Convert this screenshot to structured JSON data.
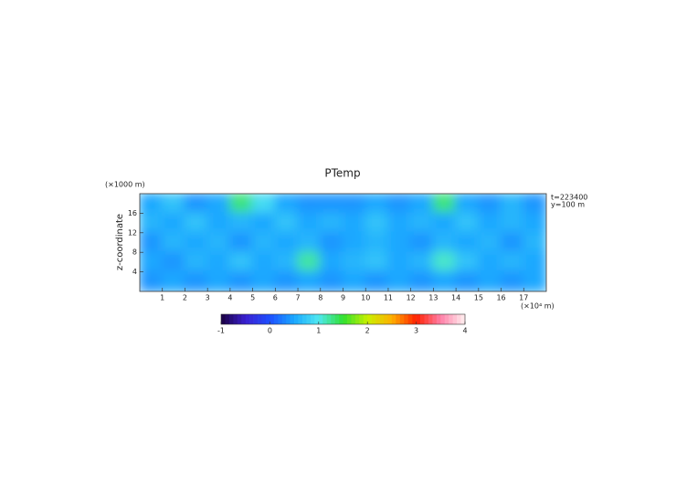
{
  "chart_data": {
    "type": "heatmap",
    "title": "PTemp",
    "ylabel": "z-coordinate",
    "y_unit": "(×1000 m)",
    "x_unit": "(×10⁴ m)",
    "annotations": [
      "t=223400",
      "y=100 m"
    ],
    "xlim": [
      0,
      18
    ],
    "ylim": [
      0,
      20
    ],
    "xticks": [
      1,
      2,
      3,
      4,
      5,
      6,
      7,
      8,
      9,
      10,
      11,
      12,
      13,
      14,
      15,
      16,
      17
    ],
    "yticks": [
      4,
      8,
      12,
      16
    ],
    "values": [
      [
        0.5,
        0.7,
        0.4,
        0.5,
        1.3,
        0.9,
        0.5,
        0.4,
        0.4,
        0.4,
        0.5,
        0.4,
        0.5,
        1.3,
        0.5,
        0.4,
        0.6,
        0.4
      ],
      [
        0.6,
        0.5,
        0.7,
        0.5,
        0.6,
        0.5,
        0.7,
        0.5,
        0.6,
        0.5,
        0.7,
        0.5,
        0.6,
        0.5,
        0.7,
        0.5,
        0.6,
        0.5
      ],
      [
        0.4,
        0.6,
        0.5,
        0.6,
        0.4,
        0.6,
        0.5,
        0.6,
        0.4,
        0.5,
        0.6,
        0.5,
        0.4,
        0.6,
        0.5,
        0.6,
        0.4,
        0.6
      ],
      [
        0.5,
        0.4,
        0.6,
        0.5,
        0.7,
        0.5,
        0.6,
        1.2,
        0.5,
        0.6,
        0.7,
        0.5,
        0.6,
        1.1,
        0.7,
        0.5,
        0.6,
        0.5
      ],
      [
        0.4,
        0.5,
        0.4,
        0.5,
        0.4,
        0.5,
        0.4,
        0.5,
        0.4,
        0.5,
        0.4,
        0.5,
        0.4,
        0.5,
        0.4,
        0.5,
        0.4,
        0.5
      ]
    ],
    "colorbar": {
      "lim": [
        -1,
        4
      ],
      "ticks": [
        -1,
        0,
        1,
        2,
        3,
        4
      ],
      "colors": [
        "#1a0040",
        "#3a20d0",
        "#1e50ff",
        "#1aa8ff",
        "#50e8f0",
        "#30e030",
        "#c8f000",
        "#ffb000",
        "#ff2000",
        "#ff80a8",
        "#fff0f0"
      ]
    }
  }
}
